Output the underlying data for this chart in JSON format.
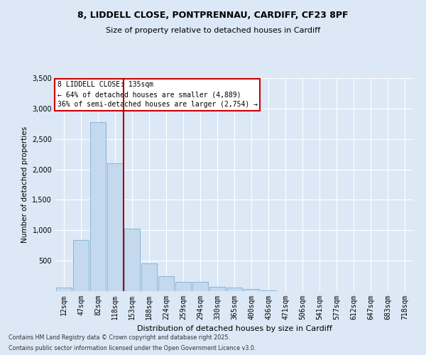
{
  "title_line1": "8, LIDDELL CLOSE, PONTPRENNAU, CARDIFF, CF23 8PF",
  "title_line2": "Size of property relative to detached houses in Cardiff",
  "xlabel": "Distribution of detached houses by size in Cardiff",
  "ylabel": "Number of detached properties",
  "categories": [
    "12sqm",
    "47sqm",
    "82sqm",
    "118sqm",
    "153sqm",
    "188sqm",
    "224sqm",
    "259sqm",
    "294sqm",
    "330sqm",
    "365sqm",
    "400sqm",
    "436sqm",
    "471sqm",
    "506sqm",
    "541sqm",
    "577sqm",
    "612sqm",
    "647sqm",
    "683sqm",
    "718sqm"
  ],
  "values": [
    55,
    840,
    2780,
    2100,
    1030,
    460,
    250,
    150,
    150,
    65,
    55,
    30,
    10,
    5,
    5,
    2,
    1,
    1,
    0,
    0,
    0
  ],
  "bar_color": "#c5d9ee",
  "bar_edge_color": "#7aadd4",
  "vline_color": "#aa0000",
  "vline_xindex": 3.5,
  "annotation_title": "8 LIDDELL CLOSE: 135sqm",
  "annotation_line2": "← 64% of detached houses are smaller (4,889)",
  "annotation_line3": "36% of semi-detached houses are larger (2,754) →",
  "ann_box_edgecolor": "#cc0000",
  "background_color": "#dce8f5",
  "ylim_max": 3500,
  "yticks": [
    0,
    500,
    1000,
    1500,
    2000,
    2500,
    3000,
    3500
  ],
  "footnote1": "Contains HM Land Registry data © Crown copyright and database right 2025.",
  "footnote2": "Contains public sector information licensed under the Open Government Licence v3.0."
}
